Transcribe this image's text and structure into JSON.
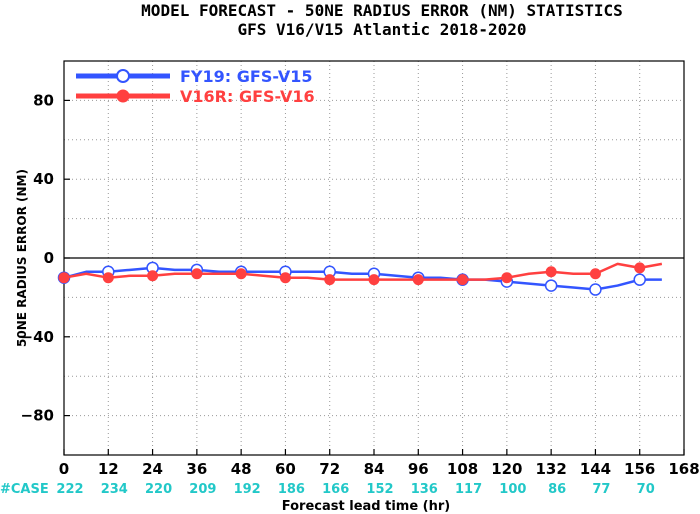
{
  "chart_data": {
    "type": "line",
    "title": "MODEL FORECAST - 50NE RADIUS ERROR (NM) STATISTICS",
    "subtitle": "GFS V16/V15 Atlantic 2018-2020",
    "xlabel": "Forecast lead time (hr)",
    "ylabel": "50NE RADIUS ERROR (NM)",
    "xlim": [
      0,
      168
    ],
    "ylim": [
      -100,
      100
    ],
    "xticks": [
      0,
      12,
      24,
      36,
      48,
      60,
      72,
      84,
      96,
      108,
      120,
      132,
      144,
      156,
      168
    ],
    "yticks": [
      80,
      40,
      0,
      -40,
      -80
    ],
    "ytick_labels": [
      "80",
      "40",
      "0",
      "−40",
      "−80"
    ],
    "grid": true,
    "legend_position": "top-left",
    "case_label": "#CASE",
    "case_counts": [
      {
        "x": 0,
        "count": "222"
      },
      {
        "x": 12,
        "count": "234"
      },
      {
        "x": 24,
        "count": "220"
      },
      {
        "x": 36,
        "count": "209"
      },
      {
        "x": 48,
        "count": "192"
      },
      {
        "x": 60,
        "count": "186"
      },
      {
        "x": 72,
        "count": "166"
      },
      {
        "x": 84,
        "count": "152"
      },
      {
        "x": 96,
        "count": "136"
      },
      {
        "x": 108,
        "count": "117"
      },
      {
        "x": 120,
        "count": "100"
      },
      {
        "x": 132,
        "count": "86"
      },
      {
        "x": 144,
        "count": "77"
      },
      {
        "x": 156,
        "count": "70"
      }
    ],
    "series": [
      {
        "name": "FY19: GFS-V15",
        "color": "#3355ff",
        "marker": "open-circle",
        "x": [
          0,
          6,
          12,
          18,
          24,
          30,
          36,
          42,
          48,
          54,
          60,
          66,
          72,
          78,
          84,
          90,
          96,
          102,
          108,
          114,
          120,
          126,
          132,
          138,
          144,
          150,
          156,
          162
        ],
        "y": [
          -10,
          -7,
          -7,
          -6,
          -5,
          -6,
          -6,
          -7,
          -7,
          -7,
          -7,
          -7,
          -7,
          -8,
          -8,
          -9,
          -10,
          -10,
          -11,
          -11,
          -12,
          -13,
          -14,
          -15,
          -16,
          -14,
          -11,
          -11
        ],
        "marker_x": [
          0,
          12,
          24,
          36,
          48,
          60,
          72,
          84,
          96,
          108,
          120,
          132,
          144,
          156
        ]
      },
      {
        "name": "V16R: GFS-V16",
        "color": "#ff4040",
        "marker": "filled-circle",
        "x": [
          0,
          6,
          12,
          18,
          24,
          30,
          36,
          42,
          48,
          54,
          60,
          66,
          72,
          78,
          84,
          90,
          96,
          102,
          108,
          114,
          120,
          126,
          132,
          138,
          144,
          150,
          156,
          162
        ],
        "y": [
          -10,
          -8,
          -10,
          -9,
          -9,
          -8,
          -8,
          -8,
          -8,
          -9,
          -10,
          -10,
          -11,
          -11,
          -11,
          -11,
          -11,
          -11,
          -11,
          -11,
          -10,
          -8,
          -7,
          -8,
          -8,
          -3,
          -5,
          -3
        ],
        "marker_x": [
          0,
          12,
          24,
          36,
          48,
          60,
          72,
          84,
          96,
          108,
          120,
          132,
          144,
          156
        ]
      }
    ],
    "case_color": "#22c8c8"
  }
}
